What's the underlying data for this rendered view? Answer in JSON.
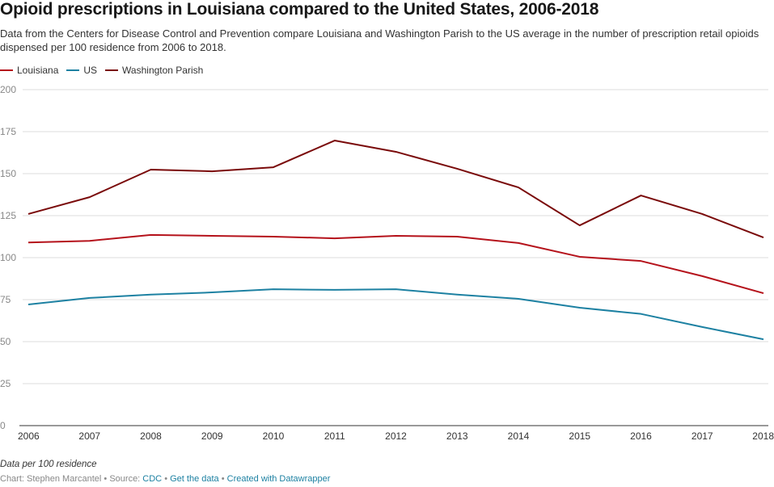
{
  "title": "Opioid prescriptions in Louisiana compared to the United States, 2006-2018",
  "subtitle": "Data from the Centers for Disease Control and Prevention compare Louisiana and Washington Parish to the US average in the number of prescription retail opioids dispensed per 100 residence from 2006 to 2018.",
  "note": "Data per 100 residence",
  "footer": {
    "chart_by": "Chart: Stephen Marcantel",
    "sep": " • ",
    "source_label": "Source: ",
    "source": "CDC",
    "get_data": "Get the data",
    "created": "Created with Datawrapper"
  },
  "chart_data": {
    "type": "line",
    "title": "Opioid prescriptions in Louisiana compared to the United States, 2006-2018",
    "x": [
      2006,
      2007,
      2008,
      2009,
      2010,
      2011,
      2012,
      2013,
      2014,
      2015,
      2016,
      2017,
      2018
    ],
    "ylim": [
      0,
      200
    ],
    "yticks": [
      0,
      25,
      50,
      75,
      100,
      125,
      150,
      175,
      200
    ],
    "grid": true,
    "legend": "top-left",
    "series": [
      {
        "name": "Louisiana",
        "color": "#b5121b",
        "values": [
          109,
          110,
          113.5,
          113,
          112.5,
          111.5,
          113,
          112.5,
          108.7,
          100.5,
          98,
          89,
          78.8
        ]
      },
      {
        "name": "US",
        "color": "#1d81a2",
        "values": [
          72.1,
          76,
          78,
          79.3,
          81.2,
          80.8,
          81.2,
          78,
          75.5,
          70.2,
          66.5,
          58.7,
          51.4
        ]
      },
      {
        "name": "Washington Parish",
        "color": "#7a0a0a",
        "values": [
          126,
          136,
          152.4,
          151.4,
          153.8,
          169.7,
          163,
          152.9,
          141.8,
          119.2,
          137,
          126,
          112
        ]
      }
    ]
  }
}
